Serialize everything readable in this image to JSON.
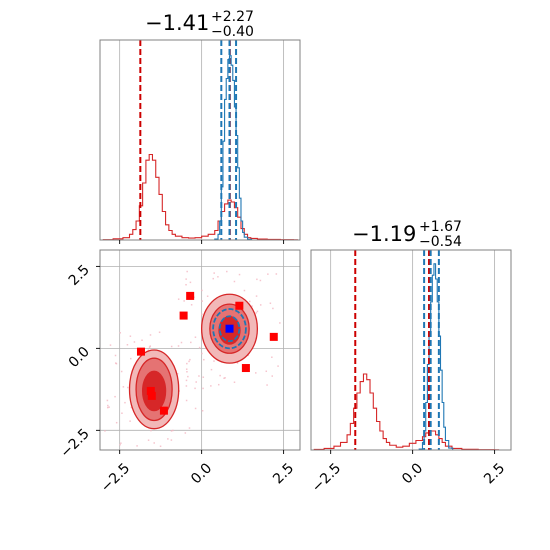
{
  "colors": {
    "red": "#d62728",
    "darkred": "#cc0000",
    "blue": "#1f77b4",
    "square": "#ff0000",
    "grid": "#b0b0b0"
  },
  "chart_data": {
    "type": "corner",
    "parameters": 2,
    "panel_titles": {
      "p1": {
        "value": "−1.41",
        "plus": "+2.27",
        "minus": "−0.40"
      },
      "p2": {
        "value": "−1.19",
        "plus": "+1.67",
        "minus": "−0.54"
      }
    },
    "x_ticks": [
      {
        "value": -2.5,
        "label": "−2.5"
      },
      {
        "value": 0.0,
        "label": "0.0"
      },
      {
        "value": 2.5,
        "label": "2.5"
      }
    ],
    "y_ticks_2d": [
      {
        "value": 2.5,
        "label": "2.5"
      },
      {
        "value": 0.0,
        "label": "0.0"
      },
      {
        "value": -2.5,
        "label": "−2.5"
      }
    ],
    "range": [
      -3.1,
      3.0
    ],
    "grid": true,
    "p1_lines": {
      "red_quantiles": [
        -1.87,
        0.86
      ],
      "blue_quantiles": [
        0.6,
        0.85,
        1.05
      ]
    },
    "p2_lines": {
      "red_quantiles": [
        -1.75,
        0.5
      ],
      "blue_quantiles": [
        0.35,
        0.55,
        0.8
      ]
    },
    "hist_p1_red": {
      "x": [
        -3.0,
        -2.7,
        -2.4,
        -2.2,
        -2.1,
        -2.0,
        -1.9,
        -1.8,
        -1.7,
        -1.6,
        -1.5,
        -1.4,
        -1.3,
        -1.2,
        -1.1,
        -1.0,
        -0.9,
        -0.8,
        -0.6,
        -0.4,
        -0.2,
        0.0,
        0.2,
        0.4,
        0.5,
        0.6,
        0.7,
        0.8,
        0.9,
        1.0,
        1.1,
        1.2,
        1.3,
        1.4,
        1.5,
        1.7,
        2.0,
        2.4,
        2.8
      ],
      "y": [
        0.002,
        0.006,
        0.012,
        0.03,
        0.055,
        0.1,
        0.18,
        0.3,
        0.42,
        0.45,
        0.42,
        0.33,
        0.24,
        0.15,
        0.08,
        0.05,
        0.03,
        0.02,
        0.012,
        0.01,
        0.012,
        0.02,
        0.03,
        0.05,
        0.1,
        0.15,
        0.19,
        0.21,
        0.2,
        0.17,
        0.12,
        0.06,
        0.03,
        0.012,
        0.008,
        0.005,
        0.003,
        0.002,
        0.001
      ]
    },
    "hist_p1_blue": {
      "x": [
        0.4,
        0.5,
        0.55,
        0.6,
        0.65,
        0.7,
        0.75,
        0.8,
        0.85,
        0.9,
        0.95,
        1.0,
        1.05,
        1.1,
        1.15,
        1.2,
        1.25,
        1.3,
        1.4
      ],
      "y": [
        0.005,
        0.03,
        0.1,
        0.28,
        0.52,
        0.74,
        0.85,
        0.95,
        0.97,
        0.92,
        0.84,
        0.7,
        0.55,
        0.38,
        0.22,
        0.1,
        0.04,
        0.015,
        0.004
      ]
    },
    "hist_p2_red": {
      "x": [
        -3.0,
        -2.7,
        -2.4,
        -2.2,
        -2.0,
        -1.9,
        -1.8,
        -1.7,
        -1.6,
        -1.5,
        -1.4,
        -1.3,
        -1.2,
        -1.1,
        -1.0,
        -0.9,
        -0.8,
        -0.7,
        -0.5,
        -0.3,
        -0.1,
        0.1,
        0.3,
        0.4,
        0.5,
        0.6,
        0.7,
        0.8,
        0.9,
        1.0,
        1.2,
        1.5,
        2.0,
        2.5
      ],
      "y": [
        0.003,
        0.008,
        0.02,
        0.04,
        0.08,
        0.14,
        0.22,
        0.3,
        0.36,
        0.4,
        0.37,
        0.3,
        0.22,
        0.15,
        0.1,
        0.06,
        0.04,
        0.025,
        0.015,
        0.02,
        0.035,
        0.05,
        0.07,
        0.09,
        0.1,
        0.1,
        0.08,
        0.06,
        0.04,
        0.02,
        0.008,
        0.004,
        0.002,
        0.001
      ]
    },
    "hist_p2_blue": {
      "x": [
        0.2,
        0.3,
        0.35,
        0.4,
        0.45,
        0.5,
        0.55,
        0.6,
        0.65,
        0.7,
        0.75,
        0.8,
        0.85,
        0.9,
        0.95,
        1.0,
        1.1
      ],
      "y": [
        0.005,
        0.04,
        0.1,
        0.25,
        0.45,
        0.62,
        0.78,
        0.92,
        0.98,
        0.9,
        0.78,
        0.6,
        0.42,
        0.25,
        0.12,
        0.05,
        0.01
      ]
    },
    "contours_red": [
      {
        "cx": -1.45,
        "cy": -1.25,
        "rx": 0.75,
        "ry": 1.2,
        "level": 0.9
      },
      {
        "cx": -1.45,
        "cy": -1.25,
        "rx": 0.55,
        "ry": 0.95,
        "level": 0.6
      },
      {
        "cx": -1.45,
        "cy": -1.3,
        "rx": 0.35,
        "ry": 0.6,
        "level": 0.3
      },
      {
        "cx": 0.85,
        "cy": 0.6,
        "rx": 0.85,
        "ry": 1.05,
        "level": 0.9
      },
      {
        "cx": 0.85,
        "cy": 0.6,
        "rx": 0.6,
        "ry": 0.75,
        "level": 0.6
      },
      {
        "cx": 0.85,
        "cy": 0.55,
        "rx": 0.32,
        "ry": 0.42,
        "level": 0.3
      }
    ],
    "contours_blue": [
      {
        "cx": 0.85,
        "cy": 0.6,
        "rx": 0.5,
        "ry": 0.6
      },
      {
        "cx": 0.85,
        "cy": 0.6,
        "rx": 0.3,
        "ry": 0.38
      }
    ],
    "red_squares": [
      {
        "x": -1.85,
        "y": -0.1
      },
      {
        "x": -1.55,
        "y": -1.3
      },
      {
        "x": -1.52,
        "y": -1.45
      },
      {
        "x": -1.15,
        "y": -1.9
      },
      {
        "x": -0.35,
        "y": 1.6
      },
      {
        "x": -0.55,
        "y": 1.0
      },
      {
        "x": 1.15,
        "y": 1.3
      },
      {
        "x": 2.2,
        "y": 0.35
      },
      {
        "x": 1.35,
        "y": -0.6
      }
    ],
    "blue_square": {
      "x": 0.85,
      "y": 0.6
    }
  }
}
